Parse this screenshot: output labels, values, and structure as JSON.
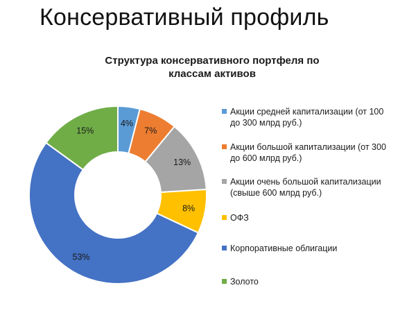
{
  "slide": {
    "title": "Консервативный профиль"
  },
  "chart_data": {
    "type": "donut",
    "title_lines": [
      "Структура консервативного портфеля по",
      "классам активов"
    ],
    "legend_position": "right",
    "slices": [
      {
        "name": "Акции средней капитализации (от 100 до 300 млрд руб.)",
        "value": 4,
        "label": "4%",
        "color": "#5b9bd5"
      },
      {
        "name": "Акции большой капитализации (от 300 до 600 млрд руб.)",
        "value": 7,
        "label": "7%",
        "color": "#ed7d31"
      },
      {
        "name": "Акции очень большой капитализации (свыше 600 млрд руб.)",
        "value": 13,
        "label": "13%",
        "color": "#a5a5a5"
      },
      {
        "name": "ОФЗ",
        "value": 8,
        "label": "8%",
        "color": "#ffc000"
      },
      {
        "name": "Корпоративные облигации",
        "value": 53,
        "label": "53%",
        "color": "#4472c4"
      },
      {
        "name": "Золото",
        "value": 15,
        "label": "15%",
        "color": "#70ad47"
      }
    ]
  }
}
